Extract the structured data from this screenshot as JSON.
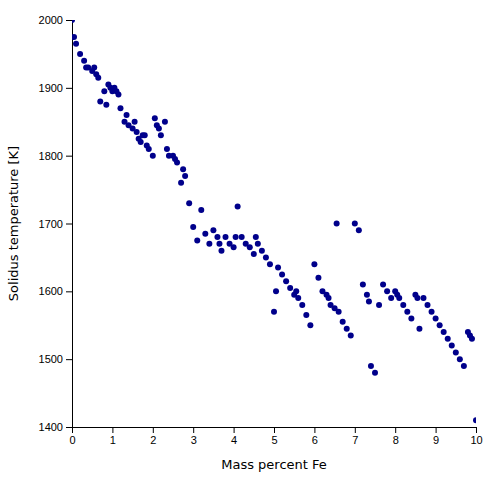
{
  "chart_data": {
    "type": "scatter",
    "xlabel": "Mass percent Fe",
    "ylabel": "Solidus temperature [K]",
    "color": "#00008B",
    "grid": false,
    "xlim": [
      0,
      10
    ],
    "ylim": [
      1400,
      2000
    ],
    "xticks": [
      0,
      1,
      2,
      3,
      4,
      5,
      6,
      7,
      8,
      9,
      10
    ],
    "yticks": [
      1400,
      1500,
      1600,
      1700,
      1800,
      1900,
      2000
    ],
    "x": [
      0.0,
      0.05,
      0.1,
      0.2,
      0.3,
      0.35,
      0.4,
      0.5,
      0.55,
      0.6,
      0.65,
      0.7,
      0.8,
      0.85,
      0.9,
      0.95,
      1.0,
      1.05,
      1.1,
      1.15,
      1.2,
      1.3,
      1.35,
      1.4,
      1.5,
      1.55,
      1.6,
      1.65,
      1.7,
      1.75,
      1.8,
      1.85,
      1.9,
      2.0,
      2.05,
      2.1,
      2.15,
      2.2,
      2.3,
      2.35,
      2.4,
      2.5,
      2.55,
      2.6,
      2.7,
      2.75,
      2.8,
      2.9,
      3.0,
      3.1,
      3.2,
      3.3,
      3.4,
      3.5,
      3.6,
      3.65,
      3.7,
      3.8,
      3.9,
      4.0,
      4.05,
      4.1,
      4.2,
      4.3,
      4.4,
      4.5,
      4.55,
      4.6,
      4.7,
      4.8,
      4.9,
      5.0,
      5.05,
      5.1,
      5.2,
      5.3,
      5.4,
      5.5,
      5.55,
      5.6,
      5.7,
      5.8,
      5.9,
      6.0,
      6.1,
      6.2,
      6.3,
      6.35,
      6.4,
      6.5,
      6.55,
      6.6,
      6.7,
      6.8,
      6.9,
      7.0,
      7.1,
      7.2,
      7.3,
      7.35,
      7.4,
      7.5,
      7.6,
      7.7,
      7.8,
      7.9,
      8.0,
      8.05,
      8.1,
      8.2,
      8.3,
      8.4,
      8.5,
      8.55,
      8.6,
      8.7,
      8.8,
      8.9,
      9.0,
      9.1,
      9.2,
      9.3,
      9.4,
      9.5,
      9.6,
      9.7,
      9.8,
      9.85,
      9.9,
      10.0
    ],
    "values": [
      2000,
      1975,
      1965,
      1950,
      1940,
      1930,
      1930,
      1925,
      1930,
      1920,
      1915,
      1880,
      1895,
      1875,
      1905,
      1900,
      1895,
      1900,
      1895,
      1890,
      1870,
      1850,
      1860,
      1845,
      1840,
      1850,
      1835,
      1825,
      1820,
      1830,
      1830,
      1815,
      1810,
      1800,
      1855,
      1845,
      1840,
      1830,
      1850,
      1810,
      1800,
      1800,
      1795,
      1790,
      1760,
      1780,
      1770,
      1730,
      1695,
      1675,
      1720,
      1685,
      1670,
      1690,
      1680,
      1670,
      1660,
      1680,
      1670,
      1665,
      1680,
      1725,
      1680,
      1670,
      1665,
      1655,
      1680,
      1670,
      1660,
      1650,
      1640,
      1570,
      1600,
      1635,
      1625,
      1615,
      1605,
      1595,
      1600,
      1590,
      1580,
      1565,
      1550,
      1640,
      1620,
      1600,
      1595,
      1590,
      1580,
      1575,
      1700,
      1570,
      1555,
      1545,
      1535,
      1700,
      1690,
      1610,
      1595,
      1585,
      1490,
      1480,
      1580,
      1610,
      1600,
      1590,
      1600,
      1595,
      1590,
      1580,
      1570,
      1560,
      1595,
      1590,
      1545,
      1590,
      1580,
      1570,
      1560,
      1550,
      1540,
      1530,
      1520,
      1510,
      1500,
      1490,
      1540,
      1535,
      1530,
      1410
    ]
  }
}
